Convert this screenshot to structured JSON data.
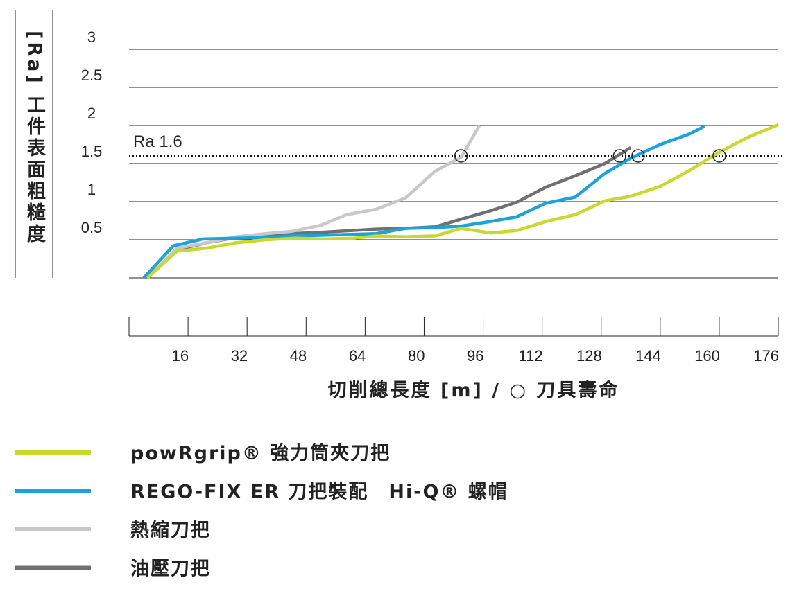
{
  "chart_data": {
    "type": "line",
    "x_label": "切削總長度 [m] / ○ 刀具壽命",
    "y_label": "[Ra] 工件表面粗糙度",
    "xlim": [
      0,
      176
    ],
    "xticks": [
      16,
      32,
      48,
      64,
      80,
      96,
      112,
      128,
      144,
      160,
      176
    ],
    "ylim": [
      0,
      3
    ],
    "yticks": [
      0.5,
      1,
      1.5,
      2,
      2.5,
      3
    ],
    "grid": true,
    "reference_line": {
      "value": 1.6,
      "label": "Ra 1.6"
    },
    "series": [
      {
        "name": "powRgrip® 強力筒夾刀把",
        "color": "#c8d92b",
        "life": 160,
        "x": [
          5,
          13,
          21,
          29,
          37,
          45,
          53,
          61,
          67,
          75,
          83,
          90,
          98,
          105,
          113,
          121,
          129,
          136,
          144,
          152,
          160,
          168,
          176
        ],
        "values": [
          0,
          0.35,
          0.39,
          0.46,
          0.5,
          0.52,
          0.51,
          0.52,
          0.55,
          0.54,
          0.55,
          0.65,
          0.59,
          0.62,
          0.74,
          0.83,
          1.01,
          1.07,
          1.2,
          1.41,
          1.65,
          1.85,
          2.01
        ]
      },
      {
        "name": "REGO-FIX ER 刀把裝配　Hi-Q® 螺帽",
        "color": "#1aa3dd",
        "life": 138,
        "x": [
          4,
          12,
          20,
          29,
          37,
          44,
          53,
          60,
          67,
          75,
          83,
          90,
          98,
          105,
          113,
          121,
          129,
          136,
          144,
          152,
          156
        ],
        "values": [
          0,
          0.42,
          0.51,
          0.52,
          0.53,
          0.55,
          0.56,
          0.57,
          0.58,
          0.65,
          0.66,
          0.68,
          0.74,
          0.8,
          0.98,
          1.06,
          1.37,
          1.57,
          1.75,
          1.89,
          1.99
        ]
      },
      {
        "name": "熱縮刀把",
        "color": "#c8c8c8",
        "life": 90,
        "x": [
          5,
          13,
          21,
          29,
          37,
          44,
          52,
          59,
          67,
          75,
          83,
          90,
          95
        ],
        "values": [
          0,
          0.39,
          0.46,
          0.54,
          0.58,
          0.61,
          0.69,
          0.83,
          0.9,
          1.05,
          1.4,
          1.58,
          2.0
        ]
      },
      {
        "name": "油壓刀把",
        "color": "#707070",
        "life": 133,
        "x": [
          5,
          13,
          21,
          29,
          37,
          44,
          53,
          60,
          67,
          75,
          83,
          90,
          98,
          105,
          113,
          121,
          129,
          136
        ],
        "values": [
          0,
          0.37,
          0.46,
          0.53,
          0.55,
          0.58,
          0.6,
          0.62,
          0.64,
          0.65,
          0.67,
          0.77,
          0.88,
          0.99,
          1.19,
          1.34,
          1.5,
          1.71
        ]
      }
    ]
  }
}
